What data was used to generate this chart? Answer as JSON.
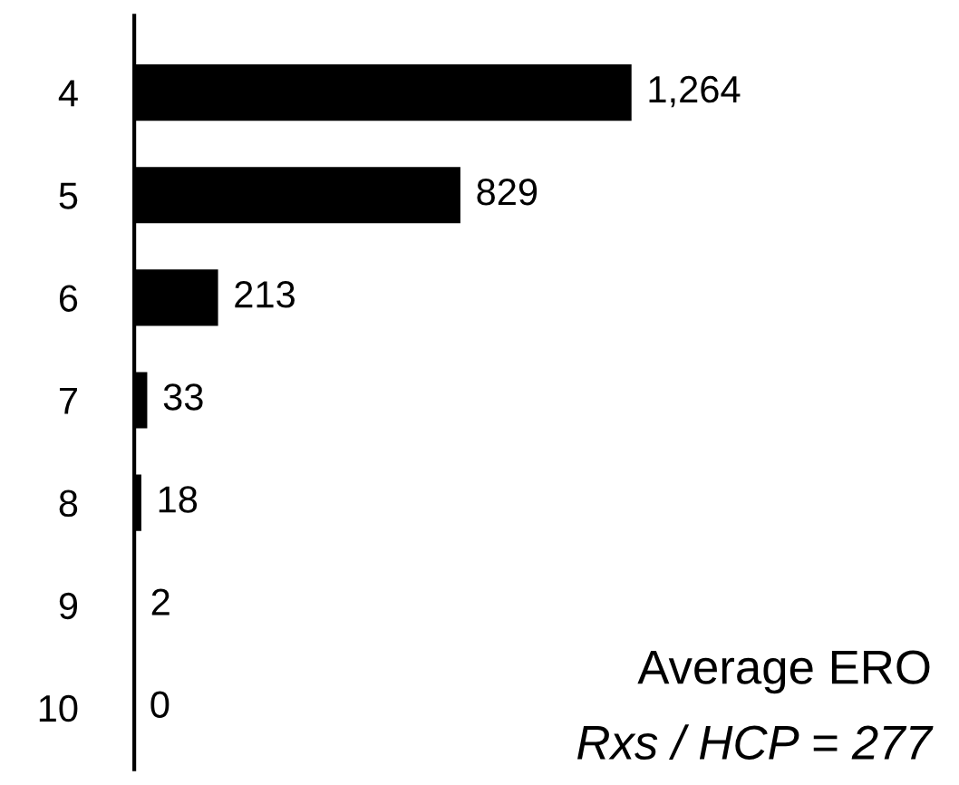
{
  "chart_data": {
    "type": "bar",
    "orientation": "horizontal",
    "categories": [
      "4",
      "5",
      "6",
      "7",
      "8",
      "9",
      "10"
    ],
    "values": [
      1264,
      829,
      213,
      33,
      18,
      2,
      0
    ],
    "value_labels": [
      "1,264",
      "829",
      "213",
      "33",
      "18",
      "2",
      "0"
    ],
    "color": "#000000",
    "annotations": [
      "Average ERO",
      "Rxs / HCP = 277"
    ],
    "grid": false,
    "legend": false
  }
}
